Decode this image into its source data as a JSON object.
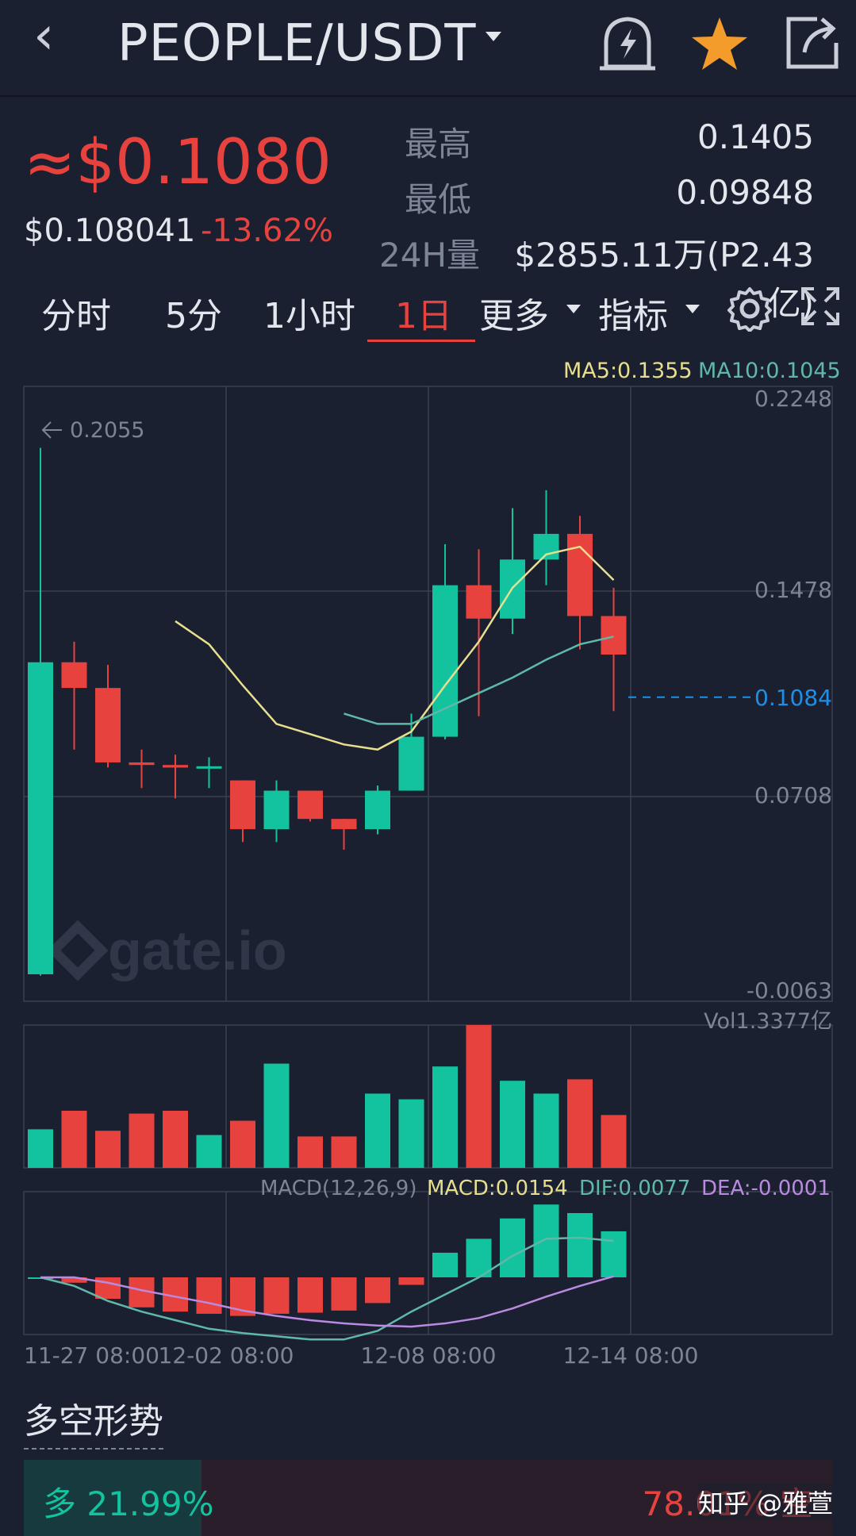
{
  "header": {
    "back_icon": "chevron-left-icon",
    "title": "PEOPLE/USDT",
    "alert_icon": "bell-lightning-icon",
    "favorite_icon": "star-icon",
    "share_icon": "share-icon"
  },
  "price": {
    "main": "≈$0.1080",
    "usd": "$0.108041",
    "change": "-13.62%"
  },
  "stats": [
    {
      "label": "最高",
      "value": "0.1405"
    },
    {
      "label": "最低",
      "value": "0.09848"
    },
    {
      "label": "24H量",
      "value": "$2855.11万(P2.43亿)"
    }
  ],
  "tabs": [
    {
      "label": "分时"
    },
    {
      "label": "5分"
    },
    {
      "label": "1小时"
    },
    {
      "label": "1日",
      "active": true
    },
    {
      "label": "更多"
    },
    {
      "label": "指标"
    }
  ],
  "toolbar": {
    "settings_icon": "gear-icon",
    "fullscreen_icon": "fullscreen-icon"
  },
  "ma_legend": {
    "ma5": "MA5:0.1355",
    "ma10": "MA10:0.1045"
  },
  "price_axis": [
    "0.2248",
    "0.1478",
    "0.0708",
    "-0.0063"
  ],
  "current_price_label": "0.1084",
  "max_marker": "0.2055",
  "watermark": "gate.io",
  "vol_label": "Vol1.3377亿",
  "macd_legend": {
    "params": "MACD(12,26,9)",
    "macd": "MACD:0.0154",
    "dif": "DIF:0.0077",
    "dea": "DEA:-0.0001"
  },
  "time_axis": [
    "11-27 08:00",
    "12-02 08:00",
    "12-08 08:00",
    "12-14 08:00"
  ],
  "sentiment": {
    "title": "多空形势",
    "long_label": "多 21.99%",
    "short_label": "78.01% 空",
    "long_pct": 21.99
  },
  "footer_watermark": "知乎 @雅萱",
  "colors": {
    "up": "#13c3a0",
    "down": "#e8423f",
    "ma5": "#e8df8e",
    "ma10": "#5fb8a8",
    "dea": "#b98ae0",
    "accent": "#1f8fe6"
  },
  "chart_data": {
    "type": "candlestick",
    "candles": [
      {
        "o": 0.0005,
        "h": 0.2055,
        "l": 0.0,
        "c": 0.122
      },
      {
        "o": 0.122,
        "h": 0.13,
        "l": 0.088,
        "c": 0.112
      },
      {
        "o": 0.112,
        "h": 0.121,
        "l": 0.081,
        "c": 0.083
      },
      {
        "o": 0.083,
        "h": 0.088,
        "l": 0.073,
        "c": 0.082
      },
      {
        "o": 0.082,
        "h": 0.086,
        "l": 0.069,
        "c": 0.081
      },
      {
        "o": 0.081,
        "h": 0.085,
        "l": 0.073,
        "c": 0.0815
      },
      {
        "o": 0.076,
        "h": 0.076,
        "l": 0.052,
        "c": 0.057
      },
      {
        "o": 0.057,
        "h": 0.076,
        "l": 0.052,
        "c": 0.072
      },
      {
        "o": 0.072,
        "h": 0.072,
        "l": 0.06,
        "c": 0.061
      },
      {
        "o": 0.061,
        "h": 0.061,
        "l": 0.049,
        "c": 0.057
      },
      {
        "o": 0.057,
        "h": 0.074,
        "l": 0.055,
        "c": 0.072
      },
      {
        "o": 0.072,
        "h": 0.102,
        "l": 0.072,
        "c": 0.093
      },
      {
        "o": 0.093,
        "h": 0.168,
        "l": 0.092,
        "c": 0.152
      },
      {
        "o": 0.152,
        "h": 0.166,
        "l": 0.101,
        "c": 0.139
      },
      {
        "o": 0.139,
        "h": 0.182,
        "l": 0.133,
        "c": 0.162
      },
      {
        "o": 0.162,
        "h": 0.189,
        "l": 0.152,
        "c": 0.172
      },
      {
        "o": 0.172,
        "h": 0.179,
        "l": 0.127,
        "c": 0.14
      },
      {
        "o": 0.14,
        "h": 0.151,
        "l": 0.103,
        "c": 0.125
      }
    ],
    "ma5": [
      null,
      null,
      null,
      null,
      0.138,
      0.129,
      0.113,
      0.098,
      0.094,
      0.09,
      0.088,
      0.095,
      0.113,
      0.13,
      0.151,
      0.164,
      0.167,
      0.154
    ],
    "ma10": [
      null,
      null,
      null,
      null,
      null,
      null,
      null,
      null,
      null,
      0.102,
      0.098,
      0.098,
      0.104,
      0.11,
      0.116,
      0.123,
      0.129,
      0.132
    ],
    "volume": [
      0.27,
      0.4,
      0.26,
      0.38,
      0.4,
      0.23,
      0.33,
      0.73,
      0.22,
      0.22,
      0.52,
      0.48,
      0.71,
      1.0,
      0.61,
      0.52,
      0.62,
      0.37
    ],
    "macd_hist": [
      0.0,
      -0.0005,
      -0.002,
      -0.0028,
      -0.0032,
      -0.0034,
      -0.0036,
      -0.0034,
      -0.0033,
      -0.0031,
      -0.0024,
      -0.0007,
      0.0023,
      0.0036,
      0.0055,
      0.0068,
      0.006,
      0.0043
    ],
    "dif": [
      0.0,
      -0.0008,
      -0.0022,
      -0.0032,
      -0.004,
      -0.0048,
      -0.0052,
      -0.0055,
      -0.0058,
      -0.0058,
      -0.005,
      -0.0032,
      -0.0016,
      0.0,
      0.002,
      0.0036,
      0.0037,
      0.0034
    ],
    "dea": [
      0.0,
      0.0,
      -0.0005,
      -0.0012,
      -0.0018,
      -0.0024,
      -0.0031,
      -0.0036,
      -0.004,
      -0.0043,
      -0.0045,
      -0.0046,
      -0.0043,
      -0.0038,
      -0.0029,
      -0.0018,
      -0.0008,
      0.0001
    ],
    "price_range": [
      -0.0063,
      0.2248
    ],
    "grid": true
  }
}
